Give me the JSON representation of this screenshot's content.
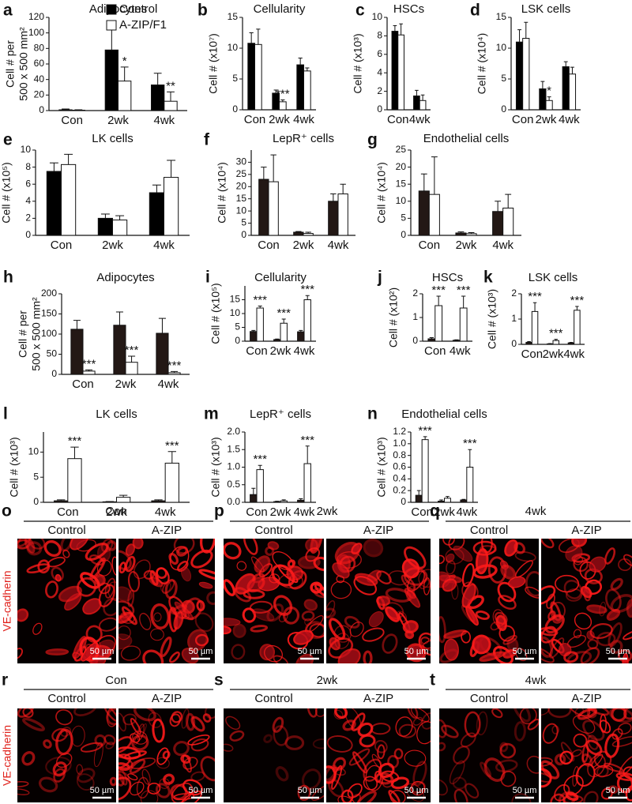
{
  "chart_data": [
    {
      "type": "bar",
      "panel": "a",
      "title": "Adipocytes",
      "ylabel": [
        "Cell # per",
        "500 x 500 mm²"
      ],
      "categories": [
        "Con",
        "2wk",
        "4wk"
      ],
      "series": [
        {
          "name": "Control",
          "color": "#000000",
          "values": [
            1,
            78,
            33
          ],
          "errors": [
            1,
            32,
            15
          ]
        },
        {
          "name": "A-ZIP/F1",
          "color": "#ffffff",
          "values": [
            0.5,
            38,
            12
          ],
          "errors": [
            0.5,
            18,
            12
          ],
          "annotations": [
            null,
            "*",
            "**"
          ]
        }
      ],
      "ylim": [
        0,
        120
      ],
      "yticks": [
        0,
        20,
        40,
        60,
        80,
        100,
        120
      ],
      "legend": "upper right"
    },
    {
      "type": "bar",
      "panel": "b",
      "title": "Cellularity",
      "ylabel": "Cell # (x10⁷)",
      "categories": [
        "Con",
        "2wk",
        "4wk"
      ],
      "series": [
        {
          "color": "#000000",
          "values": [
            10.8,
            2.7,
            7.3
          ],
          "errors": [
            1.7,
            0.5,
            1.1
          ]
        },
        {
          "color": "#ffffff",
          "values": [
            10.6,
            1.3,
            6.3
          ],
          "errors": [
            2.5,
            0.3,
            0.5
          ],
          "annotations": [
            null,
            "***",
            null
          ]
        }
      ],
      "ylim": [
        0,
        15
      ],
      "yticks": [
        0,
        5,
        10,
        15
      ]
    },
    {
      "type": "bar",
      "panel": "c",
      "title": "HSCs",
      "ylabel": "Cell # (x10³)",
      "categories": [
        "Con",
        "4wk"
      ],
      "series": [
        {
          "color": "#000000",
          "values": [
            8.5,
            1.5
          ],
          "errors": [
            0.6,
            0.6
          ]
        },
        {
          "color": "#ffffff",
          "values": [
            8.1,
            1.0
          ],
          "errors": [
            1.2,
            0.6
          ]
        }
      ],
      "ylim": [
        0,
        10
      ],
      "yticks": [
        0,
        2,
        4,
        6,
        8,
        10
      ]
    },
    {
      "type": "bar",
      "panel": "d",
      "title": "LSK cells",
      "ylabel": "Cell # (x10⁴)",
      "categories": [
        "Con",
        "2wk",
        "4wk"
      ],
      "series": [
        {
          "color": "#000000",
          "values": [
            11,
            3.4,
            7
          ],
          "errors": [
            2,
            1.2,
            0.8
          ]
        },
        {
          "color": "#ffffff",
          "values": [
            11.6,
            1.5,
            5.8
          ],
          "errors": [
            2.6,
            0.6,
            1.1
          ],
          "annotations": [
            null,
            "*",
            null
          ]
        }
      ],
      "ylim": [
        0,
        15
      ],
      "yticks": [
        0,
        5,
        10,
        15
      ]
    },
    {
      "type": "bar",
      "panel": "e",
      "title": "LK cells",
      "ylabel": "Cell # (x10⁵)",
      "categories": [
        "Con",
        "2wk",
        "4wk"
      ],
      "series": [
        {
          "color": "#000000",
          "values": [
            7.5,
            2,
            5
          ],
          "errors": [
            1,
            0.5,
            0.9
          ]
        },
        {
          "color": "#ffffff",
          "values": [
            8.3,
            1.8,
            6.8
          ],
          "errors": [
            1.2,
            0.5,
            2
          ]
        }
      ],
      "ylim": [
        0,
        10
      ],
      "yticks": [
        0,
        2,
        4,
        6,
        8,
        10
      ]
    },
    {
      "type": "bar",
      "panel": "f",
      "title": "LepR⁺ cells",
      "ylabel": "Cell # (x10⁴)",
      "categories": [
        "Con",
        "2wk",
        "4wk"
      ],
      "series": [
        {
          "color": "#231815",
          "values": [
            23,
            1.3,
            14
          ],
          "errors": [
            5,
            0.3,
            3
          ]
        },
        {
          "color": "#ffffff",
          "values": [
            22,
            0.8,
            17
          ],
          "errors": [
            11,
            0.5,
            4
          ]
        }
      ],
      "ylim": [
        0,
        35
      ],
      "yticks": [
        0,
        5,
        10,
        15,
        20,
        25,
        30
      ]
    },
    {
      "type": "bar",
      "panel": "g",
      "title": "Endothelial cells",
      "ylabel": "Cell # (x10⁴)",
      "categories": [
        "Con",
        "2wk",
        "4wk"
      ],
      "series": [
        {
          "color": "#231815",
          "values": [
            13,
            0.7,
            7
          ],
          "errors": [
            5,
            0.3,
            3
          ]
        },
        {
          "color": "#ffffff",
          "values": [
            12,
            0.5,
            8
          ],
          "errors": [
            11,
            0.3,
            4
          ]
        }
      ],
      "ylim": [
        0,
        25
      ],
      "yticks": [
        0,
        5,
        10,
        15,
        20,
        25
      ]
    },
    {
      "type": "bar",
      "panel": "h",
      "title": "Adipocytes",
      "ylabel": [
        "Cell # per",
        "500 x 500 mm²"
      ],
      "categories": [
        "Con",
        "2wk",
        "4wk"
      ],
      "series": [
        {
          "color": "#231815",
          "values": [
            112,
            122,
            102
          ],
          "errors": [
            22,
            33,
            37
          ]
        },
        {
          "color": "#ffffff",
          "values": [
            8,
            30,
            4
          ],
          "errors": [
            3,
            15,
            3
          ],
          "annotations": [
            "***",
            "***",
            "***"
          ]
        }
      ],
      "ylim": [
        0,
        200
      ],
      "yticks": [
        0,
        50,
        100,
        150,
        200
      ]
    },
    {
      "type": "bar",
      "panel": "i",
      "title": "Cellularity",
      "ylabel": "Cell # (x10⁵)",
      "categories": [
        "Con",
        "2wk",
        "4wk"
      ],
      "series": [
        {
          "color": "#231815",
          "values": [
            3.5,
            0.6,
            3.4
          ],
          "errors": [
            0.4,
            0.2,
            0.5
          ]
        },
        {
          "color": "#ffffff",
          "values": [
            12,
            6.5,
            15
          ],
          "errors": [
            0.7,
            1.5,
            1.5
          ],
          "annotations": [
            "***",
            "***",
            "***"
          ]
        }
      ],
      "ylim": [
        0,
        20
      ],
      "yticks": [
        0,
        5,
        10,
        15
      ]
    },
    {
      "type": "bar",
      "panel": "j",
      "title": "HSCs",
      "ylabel": "Cell # (x10²)",
      "categories": [
        "Con",
        "4wk"
      ],
      "series": [
        {
          "color": "#231815",
          "values": [
            0.1,
            0.04
          ],
          "errors": [
            0.05,
            0.02
          ]
        },
        {
          "color": "#ffffff",
          "values": [
            1.5,
            1.4
          ],
          "errors": [
            0.4,
            0.5
          ],
          "annotations": [
            "***",
            "***"
          ]
        }
      ],
      "ylim": [
        0,
        2
      ],
      "yticks": [
        0,
        1,
        2
      ]
    },
    {
      "type": "bar",
      "panel": "k",
      "title": "LSK cells",
      "ylabel": "Cell # (x10³)",
      "categories": [
        "Con",
        "2wk",
        "4wk"
      ],
      "series": [
        {
          "color": "#231815",
          "values": [
            0.08,
            0.02,
            0.06
          ],
          "errors": [
            0.03,
            0.01,
            0.02
          ]
        },
        {
          "color": "#ffffff",
          "values": [
            1.3,
            0.15,
            1.35
          ],
          "errors": [
            0.35,
            0.05,
            0.15
          ],
          "annotations": [
            "***",
            "***",
            "***"
          ]
        }
      ],
      "ylim": [
        0,
        2
      ],
      "yticks": [
        0,
        1,
        2
      ]
    },
    {
      "type": "bar",
      "panel": "l",
      "title": "LK cells",
      "ylabel": "Cell # (x10³)",
      "categories": [
        "Con",
        "2wk",
        "4wk"
      ],
      "series": [
        {
          "color": "#231815",
          "values": [
            0.3,
            0.1,
            0.3
          ],
          "errors": [
            0.2,
            0.05,
            0.2
          ]
        },
        {
          "color": "#ffffff",
          "values": [
            8.7,
            1,
            7.8
          ],
          "errors": [
            2.3,
            0.4,
            2.3
          ],
          "annotations": [
            "***",
            null,
            "***"
          ]
        }
      ],
      "ylim": [
        0,
        14
      ],
      "yticks": [
        0,
        5,
        10
      ]
    },
    {
      "type": "bar",
      "panel": "m",
      "title": "LepR⁺ cells",
      "ylabel": "Cell # (x10³)",
      "categories": [
        "Con",
        "2wk",
        "4wk"
      ],
      "series": [
        {
          "color": "#231815",
          "values": [
            0.22,
            0.02,
            0.06
          ],
          "errors": [
            0.18,
            0.01,
            0.04
          ]
        },
        {
          "color": "#ffffff",
          "values": [
            0.93,
            0.04,
            1.1
          ],
          "errors": [
            0.12,
            0.03,
            0.5
          ],
          "annotations": [
            "***",
            null,
            "***"
          ]
        }
      ],
      "ylim": [
        0,
        2
      ],
      "yticks": [
        {
          "value": 0,
          "label": "0.0"
        },
        0.5,
        {
          "value": 1,
          "label": "1.0"
        },
        1.5,
        {
          "value": 2,
          "label": "2.0"
        }
      ]
    },
    {
      "type": "bar",
      "panel": "n",
      "title": "Endothelial cells",
      "ylabel": "Cell # (x10³)",
      "categories": [
        "Con",
        "2wk",
        "4wk"
      ],
      "series": [
        {
          "color": "#231815",
          "values": [
            0.12,
            0.02,
            0.04
          ],
          "errors": [
            0.08,
            0.02,
            0.01
          ]
        },
        {
          "color": "#ffffff",
          "values": [
            1.07,
            0.07,
            0.6
          ],
          "errors": [
            0.05,
            0.03,
            0.3
          ],
          "annotations": [
            "***",
            null,
            "***"
          ]
        }
      ],
      "ylim": [
        0,
        1.2
      ],
      "yticks": [
        0,
        0.2,
        0.4,
        0.6,
        0.8,
        {
          "value": 1,
          "label": "1.0"
        },
        1.2
      ]
    }
  ],
  "image_panels": [
    {
      "panel": "o",
      "title": "Con",
      "images": [
        "Control",
        "A-ZIP"
      ]
    },
    {
      "panel": "p",
      "title": "2wk",
      "images": [
        "Control",
        "A-ZIP"
      ]
    },
    {
      "panel": "q",
      "title": "4wk",
      "images": [
        "Control",
        "A-ZIP"
      ]
    },
    {
      "panel": "r",
      "title": "Con",
      "images": [
        "Control",
        "A-ZIP"
      ]
    },
    {
      "panel": "s",
      "title": "2wk",
      "images": [
        "Control",
        "A-ZIP"
      ]
    },
    {
      "panel": "t",
      "title": "4wk",
      "images": [
        "Control",
        "A-ZIP"
      ]
    }
  ],
  "image_row_label": "VE-cadherin",
  "scale_bar_label": "50 µm"
}
